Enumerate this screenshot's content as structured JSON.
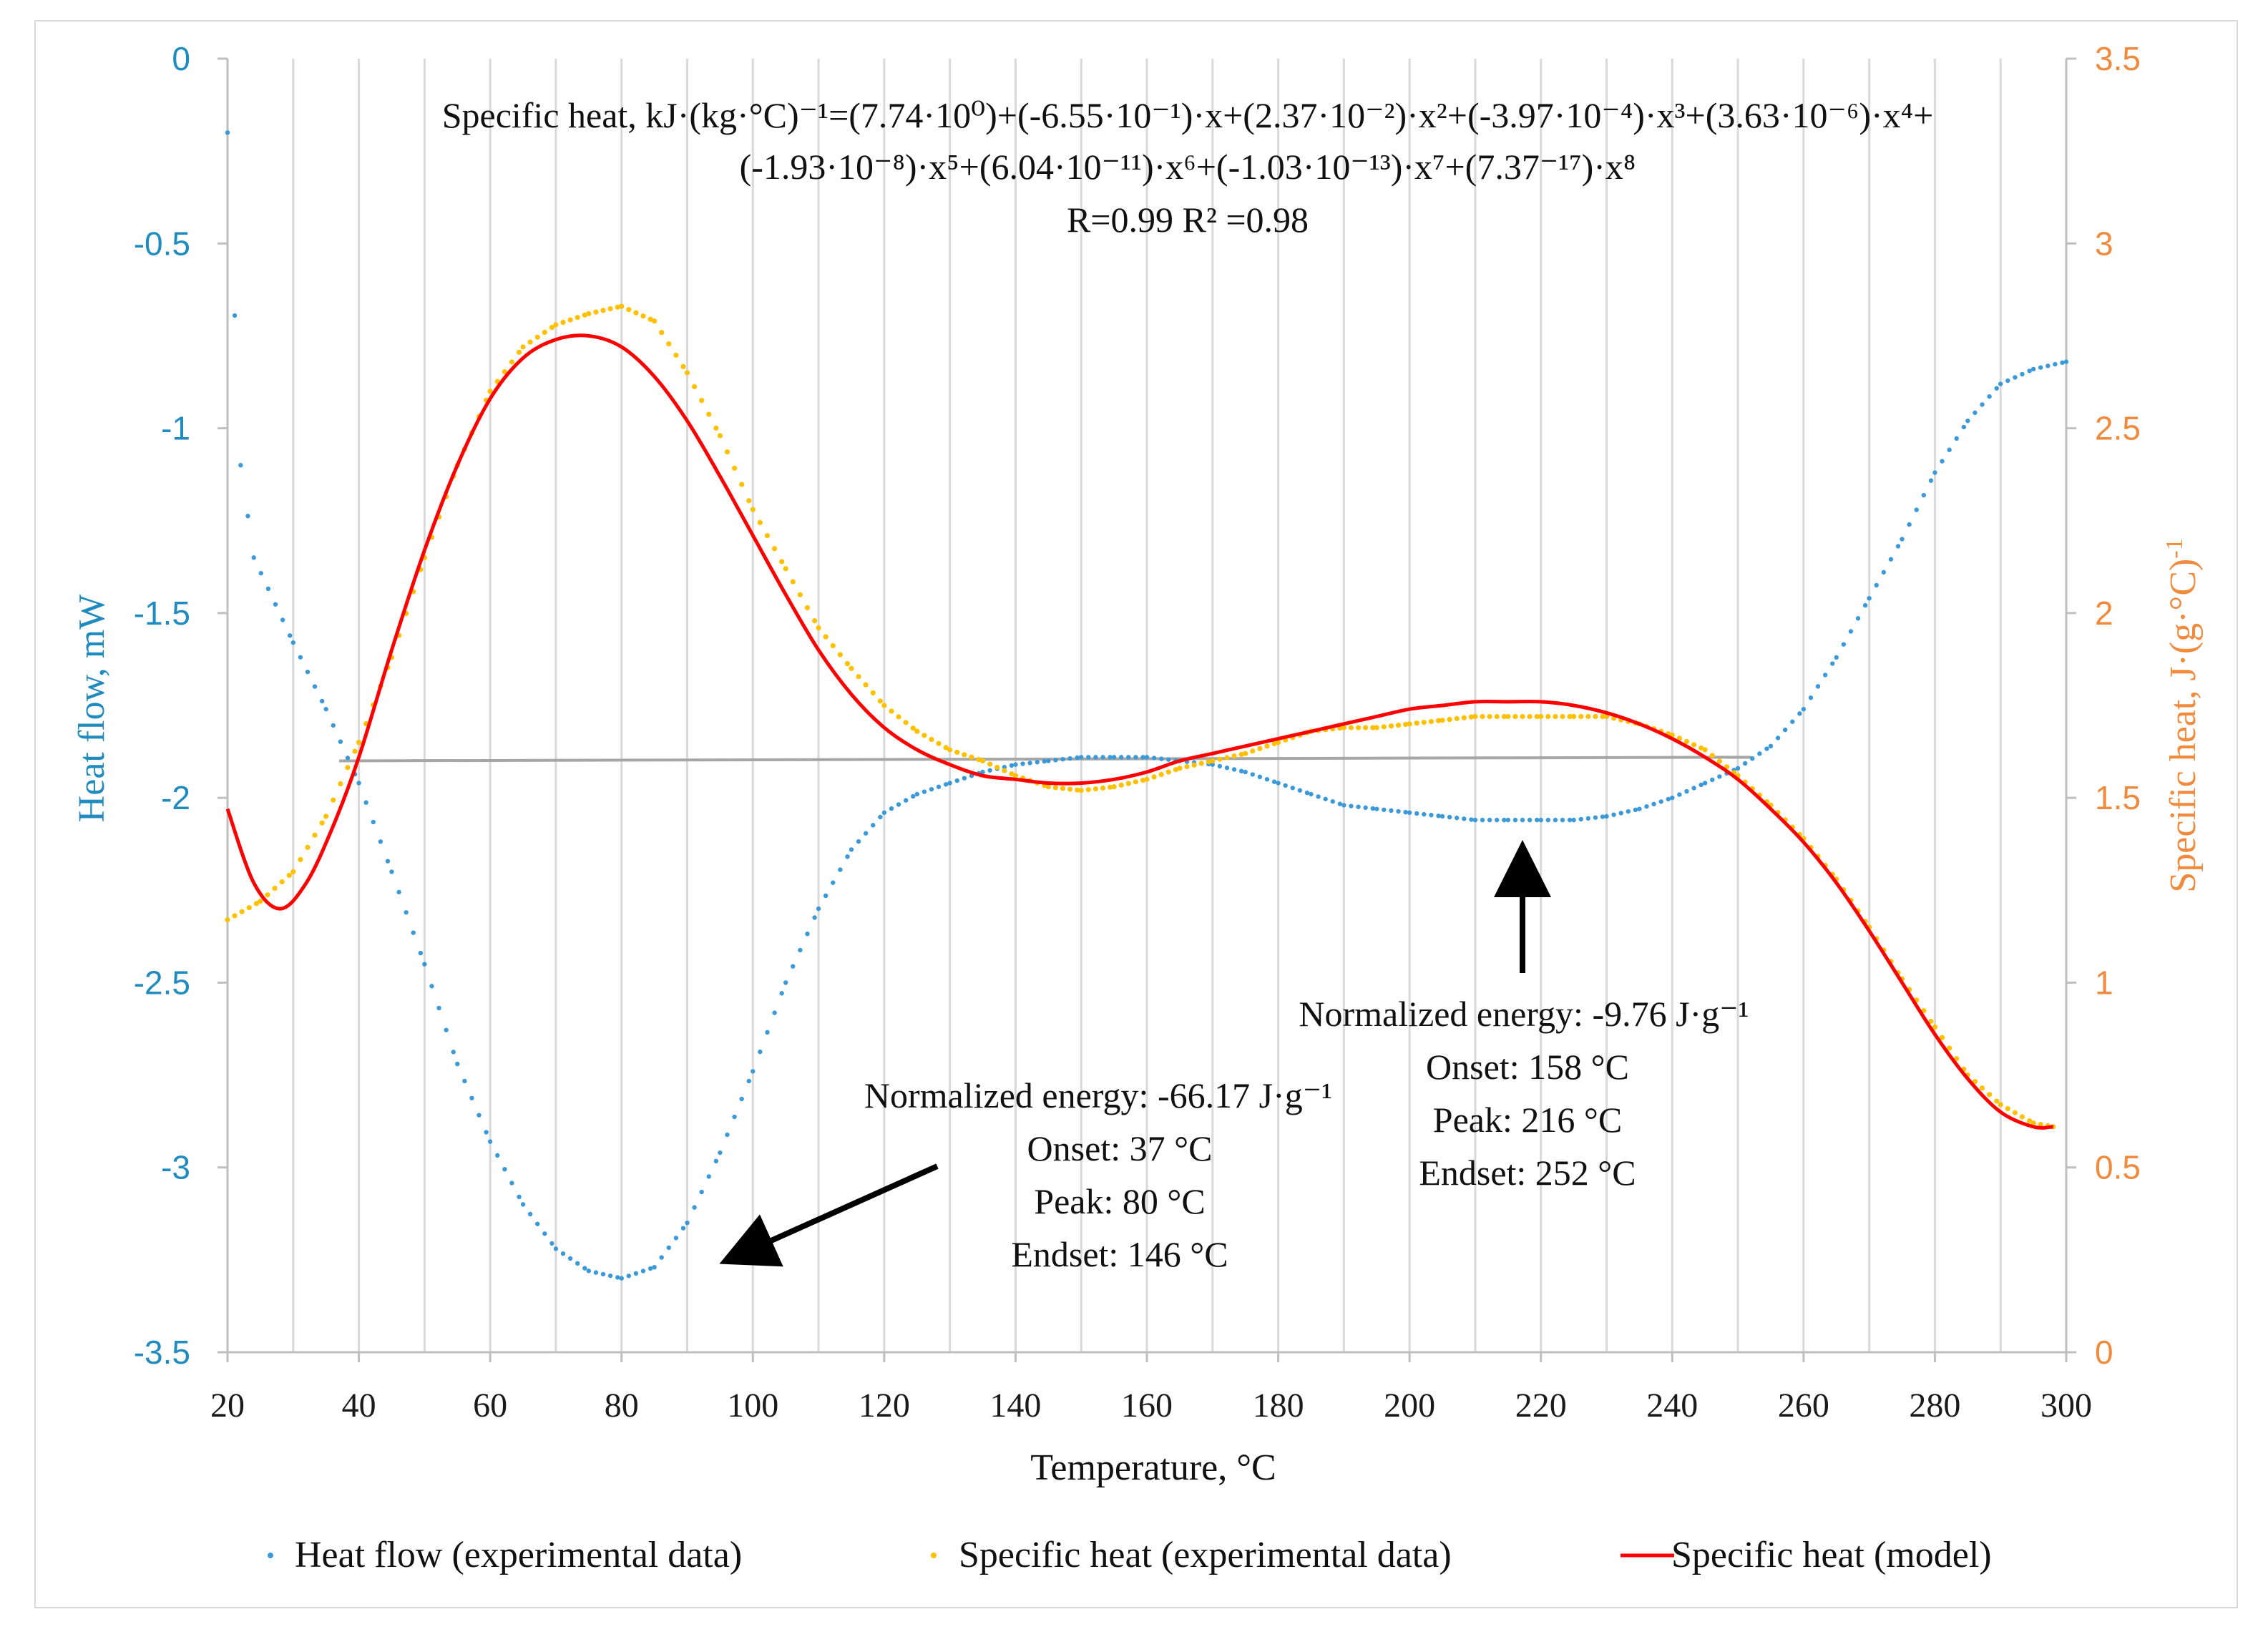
{
  "chart_data": {
    "type": "scatter",
    "title": "",
    "xlabel": "Temperature, °C",
    "ylabel_left": "Heat flow, mW",
    "ylabel_right": "Specific heat, J·(g·°C)-1",
    "ylabel_right_base": "Specific heat, J·(g·°C)",
    "ylabel_right_sup": "-1",
    "xlim": [
      20,
      300
    ],
    "ylim_left": [
      -3.5,
      0
    ],
    "ylim_right": [
      0,
      3.5
    ],
    "x_ticks": [
      "20",
      "40",
      "60",
      "80",
      "100",
      "120",
      "140",
      "160",
      "180",
      "200",
      "220",
      "240",
      "260",
      "280",
      "300"
    ],
    "y_left_ticks": [
      "0",
      "-0.5",
      "-1",
      "-1.5",
      "-2",
      "-2.5",
      "-3",
      "-3.5"
    ],
    "y_right_ticks": [
      "3.5",
      "3",
      "2.5",
      "2",
      "1.5",
      "1",
      "0.5",
      "0"
    ],
    "grid": "vertical",
    "legend_position": "bottom",
    "colors": {
      "heat_flow": "#3a9ad9",
      "specific_heat_exp": "#ffc000",
      "specific_heat_model": "#ff0000",
      "baseline": "#a6a6a6",
      "left_axis": "#1f8bbf",
      "right_axis": "#f08a3c"
    },
    "series": [
      {
        "name": "Heat flow (experimental data)",
        "axis": "left",
        "style": "dots",
        "x": [
          20,
          22,
          24,
          30,
          35,
          40,
          45,
          50,
          55,
          60,
          65,
          70,
          75,
          80,
          85,
          90,
          95,
          100,
          105,
          110,
          115,
          120,
          125,
          130,
          135,
          140,
          145,
          150,
          155,
          160,
          165,
          170,
          175,
          180,
          185,
          190,
          195,
          200,
          205,
          210,
          215,
          220,
          225,
          230,
          235,
          240,
          245,
          250,
          255,
          260,
          265,
          270,
          275,
          280,
          285,
          290,
          295,
          300
        ],
        "values": [
          -0.2,
          -1.1,
          -1.35,
          -1.58,
          -1.76,
          -1.96,
          -2.2,
          -2.45,
          -2.72,
          -2.93,
          -3.1,
          -3.22,
          -3.28,
          -3.3,
          -3.27,
          -3.15,
          -2.96,
          -2.74,
          -2.5,
          -2.3,
          -2.14,
          -2.04,
          -1.99,
          -1.96,
          -1.93,
          -1.91,
          -1.9,
          -1.89,
          -1.89,
          -1.89,
          -1.9,
          -1.91,
          -1.93,
          -1.96,
          -1.99,
          -2.02,
          -2.03,
          -2.04,
          -2.05,
          -2.06,
          -2.06,
          -2.06,
          -2.06,
          -2.05,
          -2.03,
          -2.0,
          -1.96,
          -1.92,
          -1.86,
          -1.76,
          -1.62,
          -1.46,
          -1.3,
          -1.12,
          -0.98,
          -0.88,
          -0.84,
          -0.82
        ]
      },
      {
        "name": "Specific heat (experimental data)",
        "axis": "right",
        "style": "dots",
        "x": [
          20,
          25,
          30,
          35,
          40,
          45,
          50,
          55,
          60,
          65,
          70,
          75,
          80,
          85,
          90,
          95,
          100,
          105,
          110,
          115,
          120,
          125,
          130,
          135,
          140,
          145,
          150,
          155,
          160,
          165,
          170,
          175,
          180,
          185,
          190,
          195,
          200,
          205,
          210,
          215,
          220,
          225,
          230,
          235,
          240,
          245,
          250,
          255,
          260,
          265,
          270,
          275,
          280,
          285,
          290,
          295,
          298
        ],
        "values": [
          1.17,
          1.22,
          1.3,
          1.45,
          1.65,
          1.88,
          2.15,
          2.4,
          2.6,
          2.72,
          2.78,
          2.81,
          2.83,
          2.79,
          2.65,
          2.48,
          2.28,
          2.12,
          1.96,
          1.85,
          1.75,
          1.68,
          1.63,
          1.6,
          1.56,
          1.53,
          1.52,
          1.53,
          1.55,
          1.58,
          1.6,
          1.62,
          1.65,
          1.68,
          1.69,
          1.69,
          1.7,
          1.71,
          1.72,
          1.72,
          1.72,
          1.72,
          1.72,
          1.7,
          1.67,
          1.63,
          1.56,
          1.48,
          1.39,
          1.28,
          1.15,
          1.01,
          0.88,
          0.75,
          0.67,
          0.62,
          0.61
        ]
      },
      {
        "name": "Specific heat (model)",
        "axis": "right",
        "style": "line",
        "x": [
          20,
          24,
          28,
          32,
          36,
          40,
          45,
          50,
          55,
          60,
          65,
          70,
          75,
          80,
          85,
          90,
          95,
          100,
          105,
          110,
          115,
          120,
          125,
          130,
          135,
          140,
          145,
          150,
          155,
          160,
          165,
          170,
          175,
          180,
          185,
          190,
          195,
          200,
          205,
          210,
          215,
          220,
          225,
          230,
          235,
          240,
          245,
          250,
          255,
          260,
          265,
          270,
          275,
          280,
          285,
          290,
          295,
          298
        ],
        "values": [
          1.47,
          1.27,
          1.2,
          1.27,
          1.42,
          1.61,
          1.9,
          2.17,
          2.4,
          2.58,
          2.69,
          2.74,
          2.75,
          2.72,
          2.64,
          2.52,
          2.37,
          2.21,
          2.05,
          1.9,
          1.78,
          1.69,
          1.63,
          1.59,
          1.56,
          1.55,
          1.54,
          1.54,
          1.55,
          1.57,
          1.6,
          1.62,
          1.64,
          1.66,
          1.68,
          1.7,
          1.72,
          1.74,
          1.75,
          1.76,
          1.76,
          1.76,
          1.75,
          1.73,
          1.7,
          1.66,
          1.61,
          1.55,
          1.47,
          1.38,
          1.27,
          1.14,
          1.0,
          0.86,
          0.74,
          0.65,
          0.61,
          0.61
        ]
      }
    ],
    "baseline": {
      "x": [
        37,
        252
      ],
      "values": [
        -1.9,
        -1.89
      ],
      "axis": "left"
    },
    "annotations": {
      "equation_line1": "Specific heat, kJ·(kg·°C)⁻¹=(7.74·10⁰)+(-6.55·10⁻¹)·x+(2.37·10⁻²)·x²+(-3.97·10⁻⁴)·x³+(3.63·10⁻⁶)·x⁴+",
      "equation_line2": "(-1.93·10⁻⁸)·x⁵+(6.04·10⁻¹¹)·x⁶+(-1.03·10⁻¹³)·x⁷+(7.37⁻¹⁷)·x⁸",
      "fit_stats": "R=0.99 R² =0.98",
      "peak1": {
        "energy": "Normalized  energy: -66.17 J·g⁻¹",
        "onset": "Onset: 37 °C",
        "peak": "Peak: 80 °C",
        "endset": "Endset: 146 °C"
      },
      "peak2": {
        "energy": "Normalized  energy: -9.76 J·g⁻¹",
        "onset": "Onset: 158 °C",
        "peak": "Peak: 216 °C",
        "endset": "Endset: 252 °C"
      }
    }
  }
}
